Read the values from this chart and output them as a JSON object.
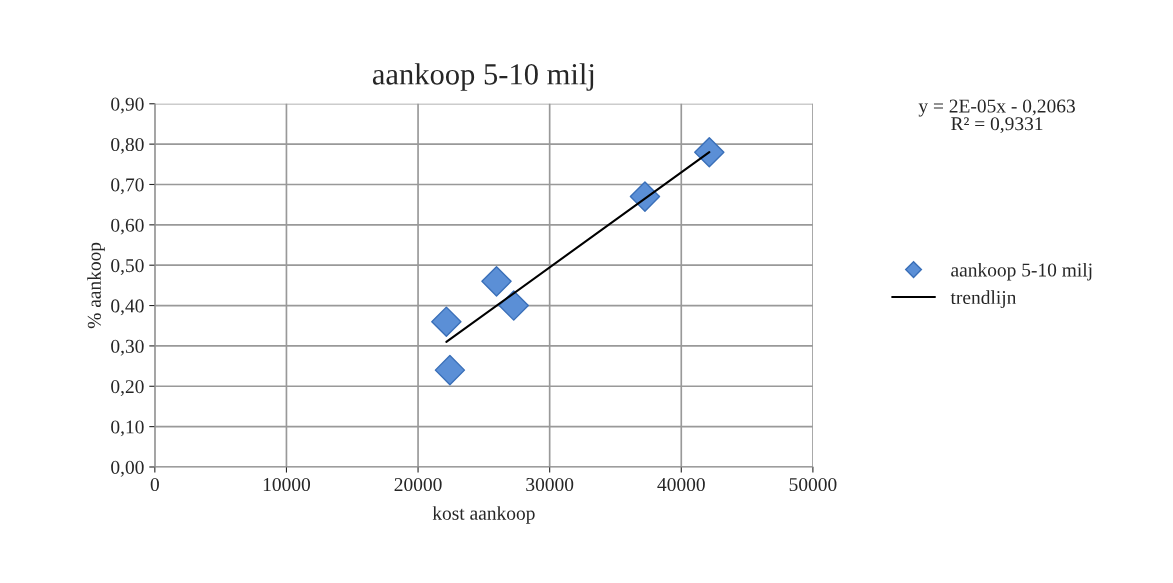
{
  "chart_data": {
    "type": "scatter",
    "title": "aankoop 5-10 milj",
    "xlabel": "kost aankoop",
    "ylabel": "% aankoop",
    "series": [
      {
        "name": "aankoop 5-10 milj",
        "color": "#5b8fd6",
        "marker": "diamond",
        "x": [
          22150,
          22420,
          25960,
          27270,
          37240,
          42130
        ],
        "values": [
          0.36,
          0.24,
          0.46,
          0.4,
          0.67,
          0.78
        ]
      },
      {
        "name": "trendlijn",
        "type": "line",
        "color": "#000000",
        "marker": "none",
        "line_style": "solid",
        "x": [
          22150,
          42130
        ],
        "values": [
          0.31,
          0.78
        ]
      }
    ],
    "annotations": [
      "y = 2E-05x - 0,2063\nR² = 0,9331"
    ],
    "xlim": [
      0,
      50000
    ],
    "xticks": [
      0,
      10000,
      20000,
      30000,
      40000,
      50000
    ],
    "ylim": [
      0,
      0.9
    ],
    "yticks": [
      {
        "value": 0,
        "label": "0,00"
      },
      {
        "value": 0.1,
        "label": "0,10"
      },
      {
        "value": 0.2,
        "label": "0,20"
      },
      {
        "value": 0.3,
        "label": "0,30"
      },
      {
        "value": 0.4,
        "label": "0,40"
      },
      {
        "value": 0.5,
        "label": "0,50"
      },
      {
        "value": 0.6,
        "label": "0,60"
      },
      {
        "value": 0.7,
        "label": "0,70"
      },
      {
        "value": 0.8,
        "label": "0,80"
      },
      {
        "value": 0.9,
        "label": "0,90"
      }
    ],
    "grid": true,
    "legend": "right"
  }
}
